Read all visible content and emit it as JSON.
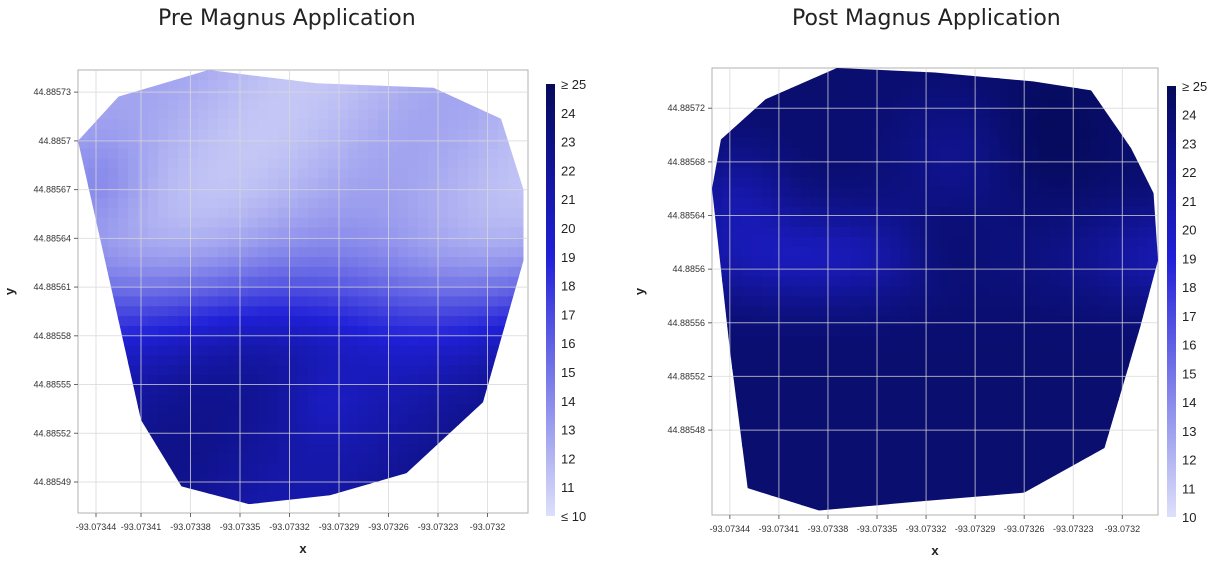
{
  "chart_data": [
    {
      "type": "heatmap",
      "title": "Pre Magnus Application",
      "xlabel": "x",
      "ylabel": "y",
      "x_ticks": [
        "-93.07344",
        "-93.07341",
        "-93.07338",
        "-93.07335",
        "-93.07332",
        "-93.07329",
        "-93.07326",
        "-93.07323",
        "-93.0732"
      ],
      "y_ticks": [
        "44.88573",
        "44.8857",
        "44.88567",
        "44.88564",
        "44.88561",
        "44.88558",
        "44.88555",
        "44.88552",
        "44.88549"
      ],
      "xlim": [
        -93.073458,
        -93.073183
      ],
      "ylim": [
        44.885468,
        44.885745
      ],
      "colorbar": {
        "min": 10,
        "max": 25,
        "labels": [
          "≥ 25",
          "24",
          "23",
          "22",
          "21",
          "20",
          "19",
          "18",
          "17",
          "16",
          "15",
          "14",
          "13",
          "12",
          "11",
          "≤ 10"
        ],
        "color_low": "#dde0fa",
        "color_mid": "#2020d8",
        "color_high": "#050a5a"
      },
      "grid": true,
      "value_pattern": "low (~10-13) across upper half, high (~20-25) across lower half"
    },
    {
      "type": "heatmap",
      "title": "Post Magnus Application",
      "xlabel": "x",
      "ylabel": "y",
      "x_ticks": [
        "-93.07344",
        "-93.07341",
        "-93.07338",
        "-93.07335",
        "-93.07332",
        "-93.07329",
        "-93.07326",
        "-93.07323",
        "-93.0732"
      ],
      "y_ticks": [
        "44.88572",
        "44.88568",
        "44.88564",
        "44.8856",
        "44.88556",
        "44.88552",
        "44.88548"
      ],
      "xlim": [
        -93.073457,
        -93.073177
      ],
      "ylim": [
        44.885455,
        44.885748
      ],
      "colorbar": {
        "min": 10,
        "max": 25,
        "labels": [
          "≥ 25",
          "24",
          "23",
          "22",
          "21",
          "20",
          "19",
          "18",
          "17",
          "16",
          "15",
          "14",
          "13",
          "12",
          "11",
          "10"
        ],
        "color_low": "#dde0fa",
        "color_mid": "#2020d8",
        "color_high": "#050a5a"
      },
      "grid": true,
      "value_pattern": "mostly high (~20-25) everywhere, slightly lower band (~19-21) through the upper-middle"
    }
  ]
}
